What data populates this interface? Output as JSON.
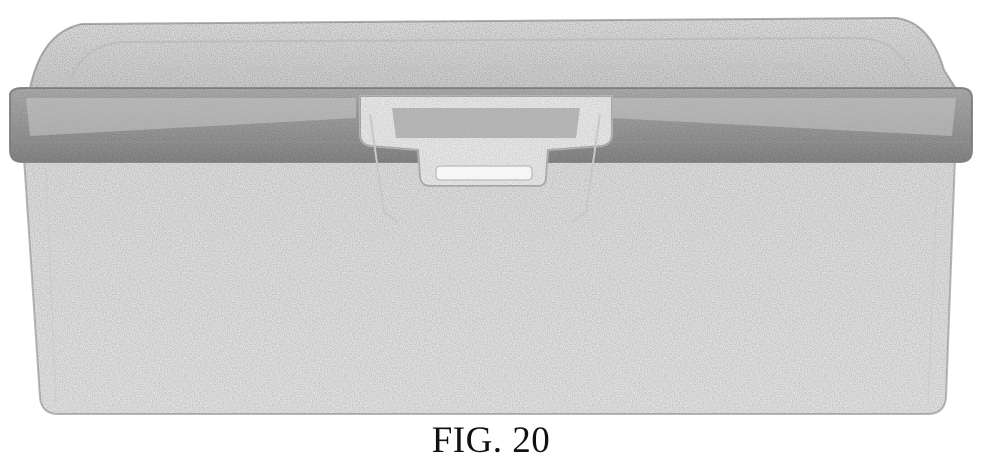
{
  "figure": {
    "label": "FIG. 20"
  },
  "colors": {
    "background": "#ffffff",
    "box_body": "#e9e9e9",
    "lid_top": "#e4e4e4",
    "lid_rim": "#a3a3a3",
    "lid_rim_dark": "#8f8f8f",
    "latch": "#efefef",
    "outline": "#9a9a9a"
  },
  "icons": {
    "drawing": "storage-box-drawing"
  }
}
